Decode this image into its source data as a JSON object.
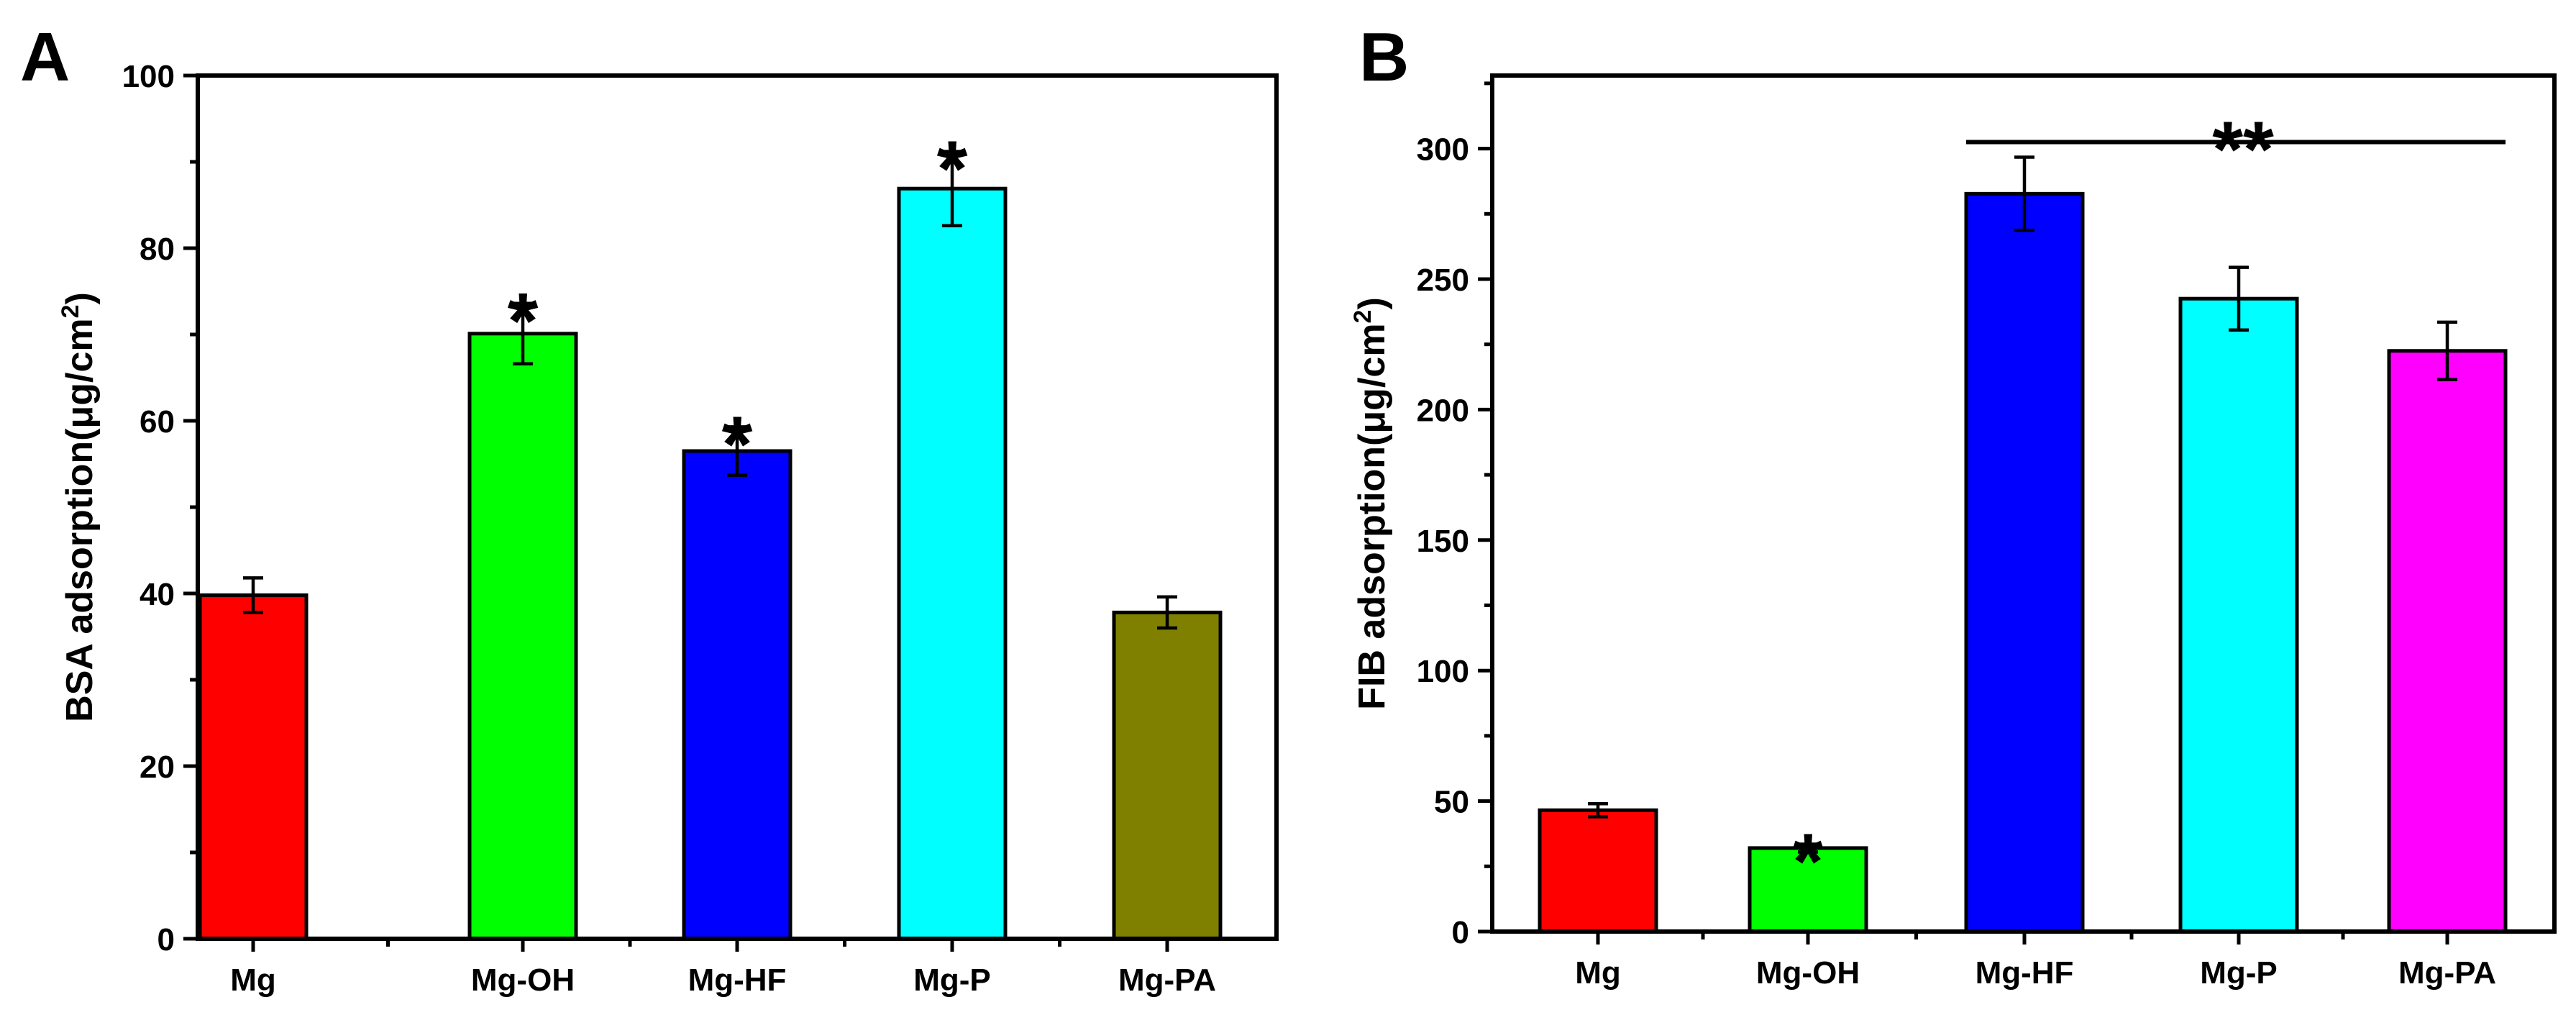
{
  "chart_data": [
    {
      "panel": "A",
      "type": "bar",
      "title": "",
      "xlabel": "",
      "ylabel_main": "BSA adsorption(μg/cm",
      "ylabel_sup": "2",
      "ylabel_end": ")",
      "categories": [
        "Mg",
        "Mg-OH",
        "Mg-HF",
        "Mg-P",
        "Mg-PA"
      ],
      "values": [
        39.8,
        70.1,
        56.5,
        86.9,
        37.8
      ],
      "errors": [
        2.0,
        3.5,
        2.8,
        4.3,
        1.8
      ],
      "colors": [
        "#ff0000",
        "#00ff00",
        "#0000ff",
        "#00ffff",
        "#808000"
      ],
      "significance": [
        "",
        "*",
        "*",
        "*",
        ""
      ],
      "ylim": [
        0,
        100
      ],
      "yticks": [
        0,
        20,
        40,
        60,
        80,
        100
      ],
      "ytick_labels": [
        "0",
        "20",
        "40",
        "60",
        "80",
        "100"
      ],
      "bracket": null
    },
    {
      "panel": "B",
      "type": "bar",
      "title": "",
      "xlabel": "",
      "ylabel_main": "FIB adsorption(μg/cm",
      "ylabel_sup": "2",
      "ylabel_end": ")",
      "categories": [
        "Mg",
        "Mg-OH",
        "Mg-HF",
        "Mg-P",
        "Mg-PA"
      ],
      "values": [
        46.5,
        32.0,
        282.7,
        242.5,
        222.5
      ],
      "errors": [
        2.5,
        1.5,
        14.0,
        12.0,
        11.0
      ],
      "colors": [
        "#ff0000",
        "#00ff00",
        "#0000ff",
        "#00ffff",
        "#ff00ff"
      ],
      "significance": [
        "",
        "*",
        "",
        "",
        ""
      ],
      "ylim": [
        0,
        328
      ],
      "yticks": [
        0,
        50,
        100,
        150,
        200,
        250,
        300
      ],
      "ytick_labels": [
        "0",
        "50",
        "100",
        "150",
        "200",
        "250",
        "300"
      ],
      "bracket": {
        "from": 2,
        "to": 4,
        "value": 302.5,
        "label": "**"
      }
    }
  ]
}
